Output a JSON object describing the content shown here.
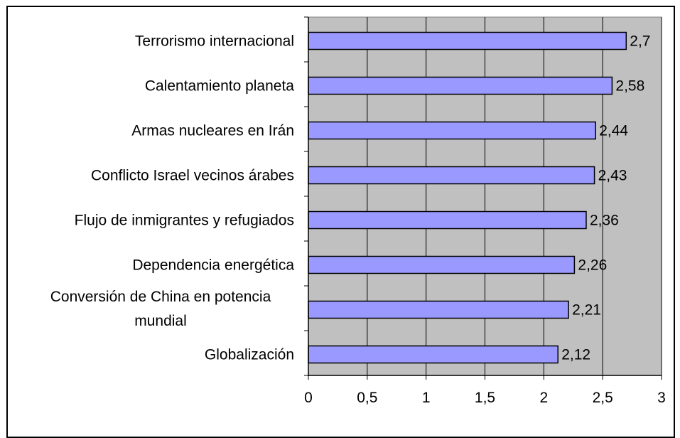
{
  "chart_data": {
    "type": "bar",
    "orientation": "horizontal",
    "title": "",
    "xlabel": "",
    "ylabel": "",
    "categories": [
      [
        "Terrorismo internacional"
      ],
      [
        "Calentamiento planeta"
      ],
      [
        "Armas nucleares en Irán"
      ],
      [
        "Conflicto Israel vecinos árabes"
      ],
      [
        "Flujo de inmigrantes y refugiados"
      ],
      [
        "Dependencia energética"
      ],
      [
        "Conversión de China en potencia",
        "mundial"
      ],
      [
        "Globalización"
      ]
    ],
    "values": [
      2.7,
      2.58,
      2.44,
      2.43,
      2.36,
      2.26,
      2.21,
      2.12
    ],
    "data_labels": [
      "2,7",
      "2,58",
      "2,44",
      "2,43",
      "2,36",
      "2,26",
      "2,21",
      "2,12"
    ],
    "xlim": [
      0,
      3
    ],
    "x_ticks": [
      0,
      0.5,
      1,
      1.5,
      2,
      2.5,
      3
    ],
    "x_tick_labels": [
      "0",
      "0,5",
      "1",
      "1,5",
      "2",
      "2,5",
      "3"
    ],
    "grid": "vertical",
    "legend": "none",
    "colors": {
      "bar_fill": "#9999ff",
      "bar_stroke": "#000000",
      "plot_background": "#c0c0c0",
      "gridline": "#000000"
    }
  }
}
